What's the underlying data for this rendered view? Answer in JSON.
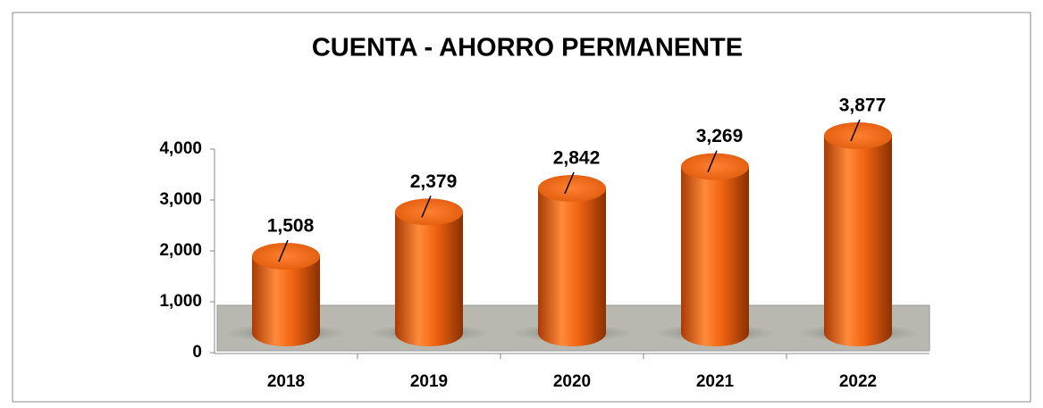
{
  "chart_data": {
    "type": "bar",
    "title": "CUENTA - AHORRO PERMANENTE",
    "categories": [
      "2018",
      "2019",
      "2020",
      "2021",
      "2022"
    ],
    "values": [
      1508,
      2379,
      2842,
      3269,
      3877
    ],
    "value_labels": [
      "1,508",
      "2,379",
      "2,842",
      "3,269",
      "3,877"
    ],
    "color": "#f0640f",
    "ylim": [
      0,
      4000
    ],
    "yticks": [
      0,
      {
        "value": 1000,
        "label": "1,000"
      },
      {
        "value": 2000,
        "label": "2,000"
      },
      {
        "value": 3000,
        "label": "3,000"
      },
      {
        "value": 4000,
        "label": "4,000"
      }
    ]
  }
}
